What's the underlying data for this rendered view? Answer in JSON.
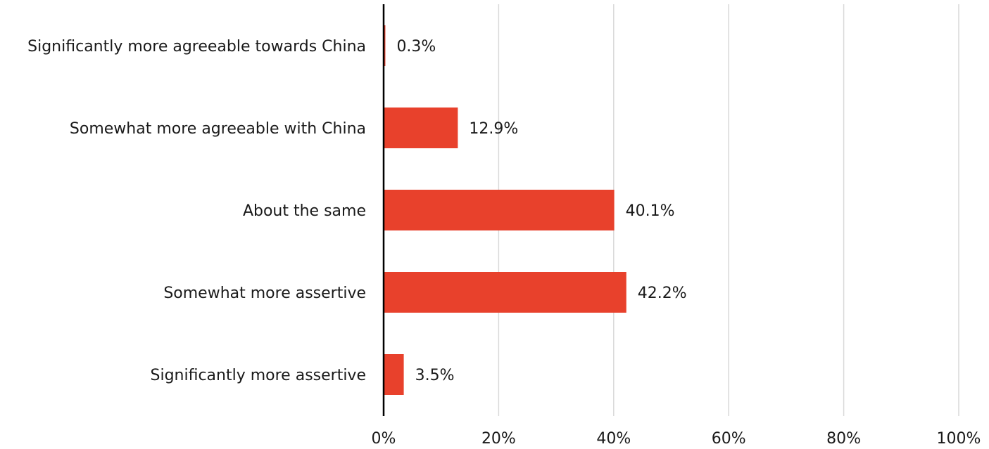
{
  "chart_data": {
    "type": "bar",
    "orientation": "horizontal",
    "categories": [
      "Significantly more agreeable towards China",
      "Somewhat more agreeable with China",
      "About the same",
      "Somewhat more assertive",
      "Significantly more assertive"
    ],
    "values": [
      0.3,
      12.9,
      40.1,
      42.2,
      3.5
    ],
    "value_labels": [
      "0.3%",
      "12.9%",
      "40.1%",
      "42.2%",
      "3.5%"
    ],
    "xlim": [
      0,
      100
    ],
    "xticks": [
      "0%",
      "20%",
      "40%",
      "60%",
      "80%",
      "100%"
    ],
    "grid": "vertical",
    "bar_color": "#e8412c",
    "grid_color": "#d9d9d9",
    "axis_color": "#000000",
    "title": "",
    "xlabel": "",
    "ylabel": ""
  }
}
